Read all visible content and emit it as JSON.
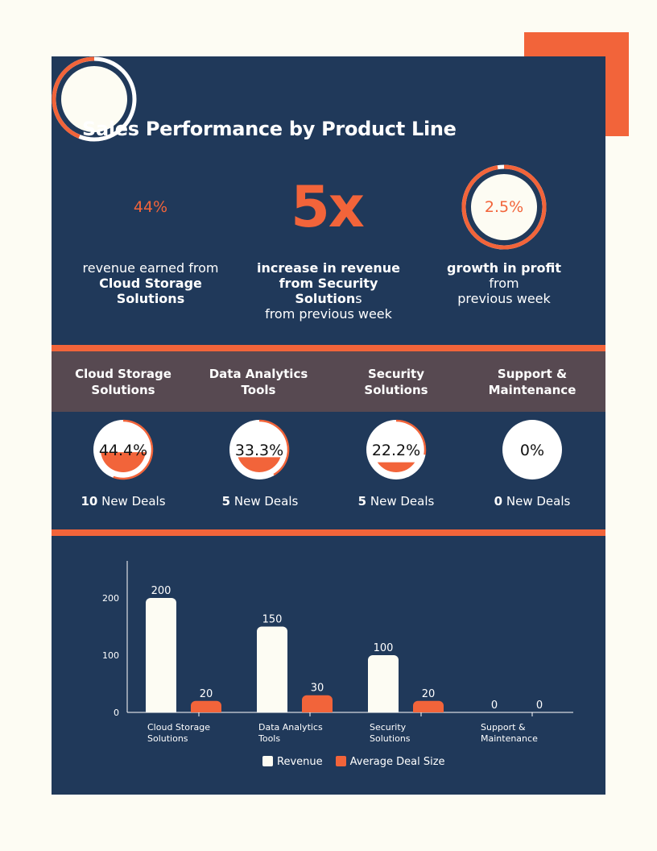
{
  "title": "Sales Performance by Product Line",
  "colors": {
    "accent": "#f2643a",
    "navy": "#20395a",
    "cream": "#fdfcf3",
    "band": "#574951",
    "white": "#ffffff"
  },
  "stats": [
    {
      "value": "44%",
      "fraction": 0.44,
      "caption_plain_before": "revenue earned from",
      "caption_bold": "Cloud Storage Solutions"
    },
    {
      "value": "5x",
      "caption_bold": "increase in revenue from Security Solution",
      "caption_plain_after_s": "s",
      "caption_plain_line3": "from previous week"
    },
    {
      "value": "2.5%",
      "fraction": 0.975,
      "caption_bold": "growth in profit",
      "caption_plain_after": "from previous week"
    }
  ],
  "stat_text": {
    "s1_line1": "revenue earned from",
    "s1_line2": "Cloud Storage",
    "s1_line3": "Solutions",
    "s2_line1": "increase in revenue",
    "s2_line2_bold": "from Security Solution",
    "s2_line2_plain": "s",
    "s2_line3": "from previous week",
    "s3_line1_bold": "growth in profit",
    "s3_line1_plain": " from",
    "s3_line2": "previous week"
  },
  "products": [
    {
      "header": [
        "Cloud Storage",
        "Solutions"
      ],
      "share": "44.4%",
      "share_fraction": 0.444,
      "deals": "10",
      "deals_label": " New Deals"
    },
    {
      "header": [
        "Data Analytics",
        "Tools"
      ],
      "share": "33.3%",
      "share_fraction": 0.333,
      "deals": "5",
      "deals_label": " New Deals"
    },
    {
      "header": [
        "Security",
        "Solutions"
      ],
      "share": "22.2%",
      "share_fraction": 0.222,
      "deals": "5",
      "deals_label": " New Deals"
    },
    {
      "header": [
        "Support &",
        "Maintenance"
      ],
      "share": "0%",
      "share_fraction": 0,
      "deals": "0",
      "deals_label": " New Deals"
    }
  ],
  "chart_data": {
    "type": "bar",
    "categories": [
      [
        "Cloud Storage",
        "Solutions"
      ],
      [
        "Data Analytics",
        "Tools"
      ],
      [
        "Security",
        "Solutions"
      ],
      [
        "Support &",
        "Maintenance"
      ]
    ],
    "series": [
      {
        "name": "Revenue",
        "values": [
          200,
          150,
          100,
          0
        ],
        "color": "#fdfcf3"
      },
      {
        "name": "Average Deal Size",
        "values": [
          20,
          30,
          20,
          0
        ],
        "color": "#f2643a"
      }
    ],
    "yticks": [
      0,
      100,
      200
    ],
    "ylim": [
      0,
      240
    ],
    "legend_position": "bottom"
  }
}
